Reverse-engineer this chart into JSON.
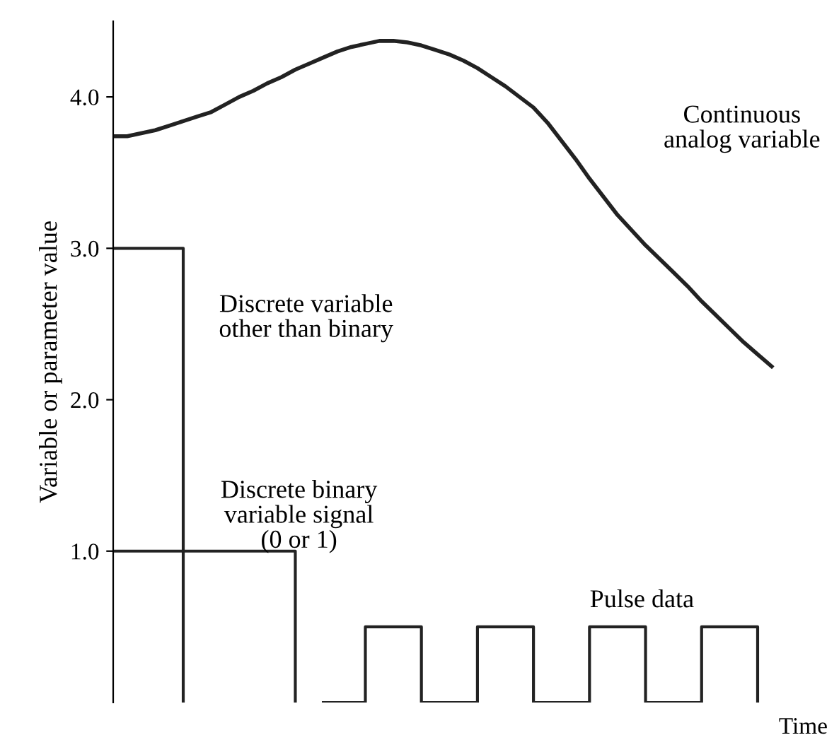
{
  "chart_data": {
    "type": "step",
    "ylabel": "Variable or parameter value",
    "xlabel": "Time",
    "categories": [
      null,
      null,
      null,
      null,
      null,
      null,
      null,
      null,
      null,
      null,
      null,
      null,
      null,
      null,
      null,
      null,
      null,
      null,
      null,
      null,
      null,
      null,
      null,
      null,
      null,
      null,
      null,
      null,
      null,
      null,
      null,
      null,
      null,
      null,
      null,
      null,
      null,
      null,
      null,
      null,
      null,
      null,
      null,
      null,
      null,
      null,
      null,
      null,
      null,
      null,
      null
    ],
    "ylim": [
      0,
      4.5
    ],
    "yticks": [
      {
        "value": 1,
        "label": "1.0"
      },
      {
        "value": 2,
        "label": "2.0"
      },
      {
        "value": 3,
        "label": "3.0"
      },
      {
        "value": 4,
        "label": "4.0"
      }
    ],
    "grid": false,
    "series": [
      {
        "type": "line",
        "color": "#222222",
        "values": [
          3.74,
          3.74,
          3.76,
          3.78,
          3.81,
          3.84,
          3.87,
          3.9,
          3.95,
          4.0,
          4.04,
          4.09,
          4.13,
          4.18,
          4.22,
          4.26,
          4.3,
          4.33,
          4.35,
          4.37,
          4.37,
          4.36,
          4.34,
          4.31,
          4.28,
          4.24,
          4.19,
          4.13,
          4.07,
          4.0,
          3.93,
          3.83,
          3.71,
          3.59,
          3.46,
          3.34,
          3.22,
          3.12,
          3.02,
          2.93,
          2.84,
          2.75,
          2.65,
          2.56,
          2.47,
          2.38,
          2.3,
          2.22,
          null,
          null,
          null
        ]
      },
      {
        "color": "#222222",
        "values": [
          3,
          3,
          3,
          3,
          3,
          0,
          null,
          null,
          null,
          null,
          null,
          null,
          null,
          null,
          null,
          null,
          null,
          null,
          null,
          null,
          null,
          null,
          null,
          null,
          null,
          null,
          null,
          null,
          null,
          null,
          null,
          null,
          null,
          null,
          null,
          null,
          null,
          null,
          null,
          null,
          null,
          null,
          null,
          null,
          null,
          null,
          null,
          null,
          null,
          null,
          null
        ]
      },
      {
        "color": "#222222",
        "values": [
          1,
          1,
          1,
          1,
          1,
          1,
          1,
          1,
          1,
          1,
          1,
          1,
          1,
          0,
          null,
          null,
          null,
          null,
          null,
          null,
          null,
          null,
          null,
          null,
          null,
          null,
          null,
          null,
          null,
          null,
          null,
          null,
          null,
          null,
          null,
          null,
          null,
          null,
          null,
          null,
          null,
          null,
          null,
          null,
          null,
          null,
          null,
          null,
          null,
          null,
          null
        ]
      },
      {
        "color": "#222222",
        "values": [
          null,
          null,
          null,
          null,
          null,
          null,
          null,
          null,
          null,
          null,
          null,
          null,
          null,
          null,
          null,
          0,
          0,
          0,
          0.5,
          0.5,
          0.5,
          0.5,
          0,
          0,
          0,
          0,
          0.5,
          0.5,
          0.5,
          0.5,
          0,
          0,
          0,
          0,
          0.5,
          0.5,
          0.5,
          0.5,
          0,
          0,
          0,
          0,
          0.5,
          0.5,
          0.5,
          0.5,
          0,
          null,
          null,
          null,
          null
        ]
      }
    ],
    "annotations": [
      "Continuous\nanalog variable",
      "Discrete variable\nother than binary",
      "Discrete binary\nvariable signal\n(0 or 1)",
      "Pulse data"
    ]
  }
}
